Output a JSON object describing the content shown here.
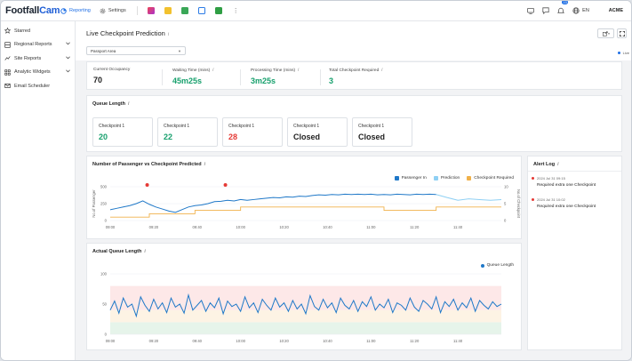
{
  "app": {
    "logo_part1": "Footfall",
    "logo_part2": "Cam",
    "nav": {
      "reporting": "Reporting",
      "settings": "Settings"
    },
    "lang": "EN",
    "user": "ACME",
    "notification_count": "10",
    "colors": {
      "accent": "#1f6fe5",
      "teal": "#17a06d",
      "red": "#e53935",
      "orange": "#f0b14a",
      "lightblue": "#8fd0f4"
    }
  },
  "sidebar": {
    "items": [
      {
        "label": "Starred",
        "icon": "star-icon"
      },
      {
        "label": "Regional Reports",
        "icon": "region-icon"
      },
      {
        "label": "Site Reports",
        "icon": "site-icon"
      },
      {
        "label": "Analytic Widgets",
        "icon": "widget-icon"
      },
      {
        "label": "Email Scheduler",
        "icon": "email-icon"
      }
    ]
  },
  "header": {
    "title": "Live Checkpoint Prediction",
    "info": "i",
    "area_select": "Passport Area",
    "live_label": "Live"
  },
  "stats": [
    {
      "label": "Current Occupancy",
      "value": "70"
    },
    {
      "label": "Waiting Time (mins)",
      "value": "45m25s"
    },
    {
      "label": "Processing Time (mins)",
      "value": "3m25s"
    },
    {
      "label": "Total Checkpoint Required",
      "value": "3"
    }
  ],
  "queue": {
    "title": "Queue Length",
    "boxes": [
      {
        "label": "Checkpoint 1",
        "value": "20",
        "status": "ok"
      },
      {
        "label": "Checkpoint 1",
        "value": "22",
        "status": "ok"
      },
      {
        "label": "Checkpoint 1",
        "value": "28",
        "status": "alert"
      },
      {
        "label": "Checkpoint 1",
        "value": "Closed",
        "status": "closed"
      },
      {
        "label": "Checkpoint 1",
        "value": "Closed",
        "status": "closed"
      }
    ]
  },
  "alerts": {
    "title": "Alert Log",
    "items": [
      {
        "time": "2024 Jul 31 09:15",
        "message": "Required extra one Checkpoint"
      },
      {
        "time": "2024 Jul 31 10:02",
        "message": "Required extra one Checkpoint"
      }
    ]
  },
  "chart_data": [
    {
      "type": "line",
      "title": "Number of Passenger vs Checkpoint Predicted",
      "ylabel": "No.of Passenger",
      "y2label": "No.of Checkpoint",
      "ylim": [
        0,
        500
      ],
      "y2lim": [
        0,
        10
      ],
      "yticks": [
        "500",
        "250",
        "0"
      ],
      "y2ticks": [
        "10",
        "5",
        "0"
      ],
      "xticks": [
        "09:00",
        "09:20",
        "09:40",
        "10:00",
        "10:20",
        "10:40",
        "11:00",
        "11:20",
        "11:40"
      ],
      "legend": [
        "Passenger In",
        "Prediction",
        "Checkpoint Required"
      ],
      "series": [
        {
          "name": "Passenger In",
          "color": "#1f78c8",
          "x": [
            0,
            3,
            6,
            9,
            12,
            15,
            18,
            21,
            24,
            27,
            30,
            33,
            36,
            39,
            42,
            45,
            48,
            51,
            54,
            57,
            60,
            63,
            66,
            69,
            72,
            75,
            78,
            81,
            84,
            87,
            90,
            93,
            96,
            99,
            102,
            105,
            108,
            111,
            114,
            117,
            120,
            123,
            126,
            129,
            132,
            135,
            138,
            141,
            144,
            147,
            150
          ],
          "values": [
            160,
            180,
            200,
            220,
            250,
            290,
            240,
            200,
            170,
            140,
            120,
            160,
            200,
            220,
            230,
            250,
            280,
            285,
            300,
            290,
            310,
            300,
            310,
            320,
            330,
            340,
            335,
            350,
            345,
            360,
            355,
            370,
            380,
            375,
            385,
            380,
            390,
            385,
            390,
            385,
            390,
            380,
            385,
            380,
            390,
            385,
            380,
            390,
            385,
            390,
            385
          ]
        },
        {
          "name": "Prediction",
          "color": "#8fd0f4",
          "x": [
            150,
            155,
            160,
            165,
            170,
            175,
            180
          ],
          "values": [
            385,
            340,
            300,
            320,
            310,
            300,
            310
          ]
        },
        {
          "name": "Checkpoint Required",
          "color": "#f0b14a",
          "x": [
            0,
            18,
            18,
            39,
            39,
            60,
            60,
            90,
            90,
            126,
            126,
            150,
            150,
            180
          ],
          "values": [
            1,
            1,
            2,
            2,
            3,
            3,
            4,
            4,
            4,
            4,
            3,
            3,
            4,
            4
          ]
        }
      ],
      "alert_markers_x": [
        17,
        53
      ]
    },
    {
      "type": "line",
      "title": "Actual Queue Length",
      "ylim": [
        0,
        100
      ],
      "yticks": [
        "100",
        "50",
        "0"
      ],
      "xticks": [
        "09:00",
        "09:20",
        "09:40",
        "10:00",
        "10:20",
        "10:40",
        "11:00",
        "11:20",
        "11:40"
      ],
      "legend": [
        "Queue Length"
      ],
      "bands": [
        {
          "from": 0,
          "to": 20,
          "color": "#e6f4ea"
        },
        {
          "from": 20,
          "to": 40,
          "color": "#fdf3e4"
        },
        {
          "from": 40,
          "to": 80,
          "color": "#fde8e8"
        }
      ],
      "series": [
        {
          "name": "Queue Length",
          "color": "#1f78c8",
          "values": [
            40,
            55,
            35,
            60,
            45,
            50,
            30,
            62,
            48,
            38,
            58,
            42,
            52,
            36,
            60,
            45,
            50,
            35,
            65,
            40,
            48,
            56,
            38,
            52,
            44,
            60,
            34,
            55,
            46,
            50,
            38,
            62,
            44,
            52,
            36,
            58,
            48,
            40,
            60,
            45,
            52,
            38,
            56,
            42,
            50,
            34,
            64,
            46,
            40,
            58,
            44,
            52,
            36,
            60,
            48,
            42,
            56,
            38,
            54,
            46,
            62,
            40,
            50,
            44,
            58,
            36,
            52,
            48,
            40,
            60,
            45,
            38,
            56,
            50,
            42,
            62,
            36,
            54,
            46,
            58,
            40,
            52,
            44,
            60,
            38,
            56,
            48,
            42,
            54,
            46,
            50
          ]
        }
      ]
    }
  ]
}
